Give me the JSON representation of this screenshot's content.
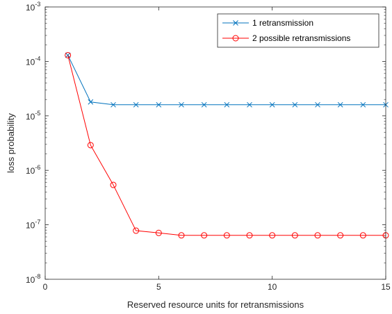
{
  "chart_data": {
    "type": "line",
    "xlabel": "Reserved resource units for retransmissions",
    "ylabel": "loss probability",
    "xlim": [
      0,
      15
    ],
    "ylim": [
      1e-08,
      0.001
    ],
    "yscale": "log",
    "grid": false,
    "legend_position": "top-right",
    "x_ticks": [
      0,
      5,
      10,
      15
    ],
    "y_ticks": [
      {
        "value": 1e-08,
        "base": "10",
        "exp": "-8"
      },
      {
        "value": 1e-07,
        "base": "10",
        "exp": "-7"
      },
      {
        "value": 1e-06,
        "base": "10",
        "exp": "-6"
      },
      {
        "value": 1e-05,
        "base": "10",
        "exp": "-5"
      },
      {
        "value": 0.0001,
        "base": "10",
        "exp": "-4"
      },
      {
        "value": 0.001,
        "base": "10",
        "exp": "-3"
      }
    ],
    "x": [
      1,
      2,
      3,
      4,
      5,
      6,
      7,
      8,
      9,
      10,
      11,
      12,
      13,
      14,
      15
    ],
    "series": [
      {
        "name": "1 retransmission",
        "color": "#0072bd",
        "marker": "x",
        "values": [
          0.00013,
          1.8e-05,
          1.6e-05,
          1.6e-05,
          1.6e-05,
          1.6e-05,
          1.6e-05,
          1.6e-05,
          1.6e-05,
          1.6e-05,
          1.6e-05,
          1.6e-05,
          1.6e-05,
          1.6e-05,
          1.6e-05
        ]
      },
      {
        "name": "2 possible retransmissions",
        "color": "#ff0000",
        "marker": "o",
        "values": [
          0.00013,
          2.9e-06,
          5.4e-07,
          7.8e-08,
          7.1e-08,
          6.4e-08,
          6.4e-08,
          6.4e-08,
          6.4e-08,
          6.4e-08,
          6.4e-08,
          6.4e-08,
          6.4e-08,
          6.4e-08,
          6.4e-08
        ]
      }
    ]
  }
}
